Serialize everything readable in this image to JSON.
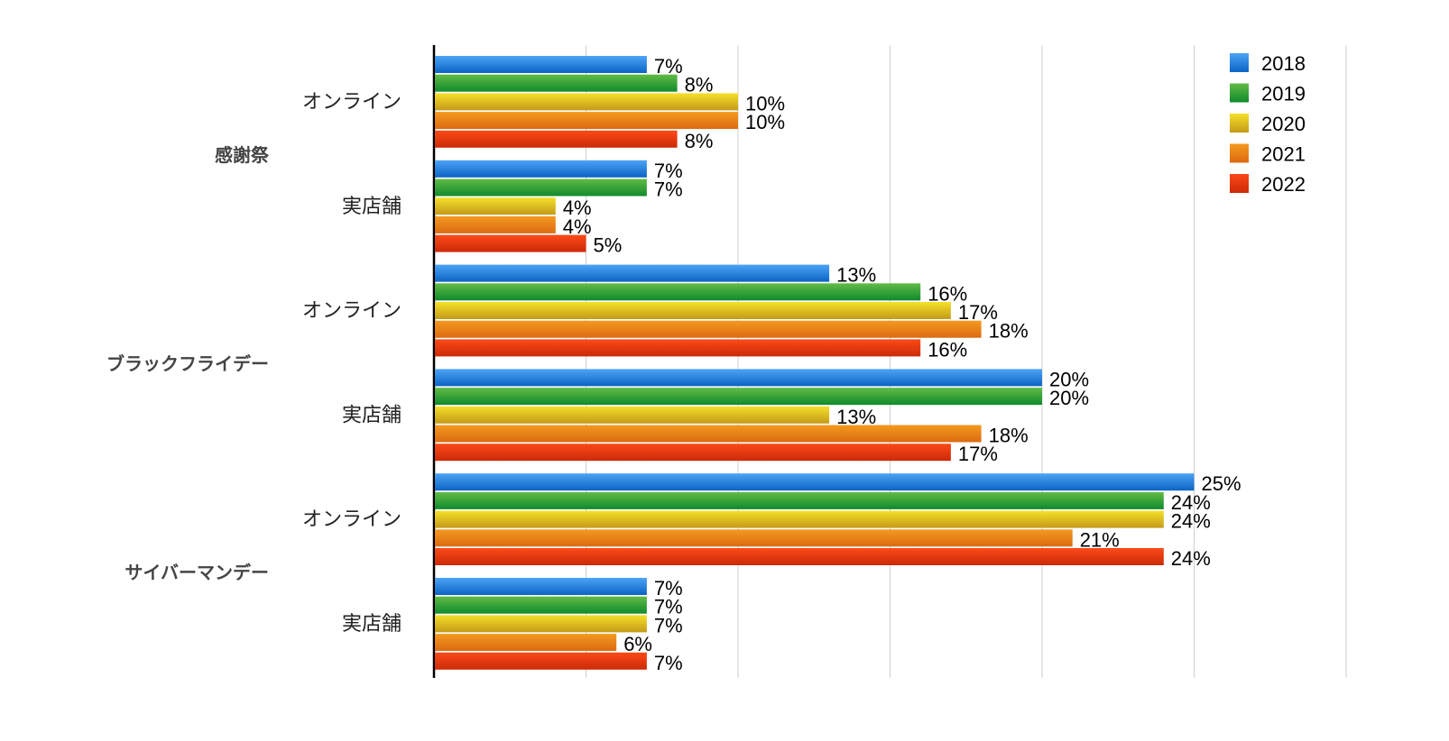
{
  "chart_data": {
    "type": "bar",
    "orientation": "horizontal",
    "title": "",
    "xlabel": "",
    "ylabel": "",
    "xlim": [
      0,
      30
    ],
    "grid": true,
    "legend_position": "top-right",
    "value_suffix": "%",
    "groups": [
      {
        "label": "感謝祭",
        "subcategories": [
          {
            "label": "オンライン",
            "values": [
              7,
              8,
              10,
              10,
              8
            ]
          },
          {
            "label": "実店舗",
            "values": [
              7,
              7,
              4,
              4,
              5
            ]
          }
        ]
      },
      {
        "label": "ブラックフライデー",
        "subcategories": [
          {
            "label": "オンライン",
            "values": [
              13,
              16,
              17,
              18,
              16
            ]
          },
          {
            "label": "実店舗",
            "values": [
              20,
              20,
              13,
              18,
              17
            ]
          }
        ]
      },
      {
        "label": "サイバーマンデー",
        "subcategories": [
          {
            "label": "オンライン",
            "values": [
              25,
              24,
              24,
              21,
              24
            ]
          },
          {
            "label": "実店舗",
            "values": [
              7,
              7,
              7,
              6,
              7
            ]
          }
        ]
      }
    ],
    "series": [
      {
        "name": "2018",
        "color_top": "#4da3f5",
        "color_bottom": "#0a64c4"
      },
      {
        "name": "2019",
        "color_top": "#62bb46",
        "color_bottom": "#108a2c"
      },
      {
        "name": "2020",
        "color_top": "#f5e02a",
        "color_bottom": "#c49a18"
      },
      {
        "name": "2021",
        "color_top": "#f39a20",
        "color_bottom": "#dc6a10"
      },
      {
        "name": "2022",
        "color_top": "#fb4a18",
        "color_bottom": "#cc2a08"
      }
    ]
  }
}
